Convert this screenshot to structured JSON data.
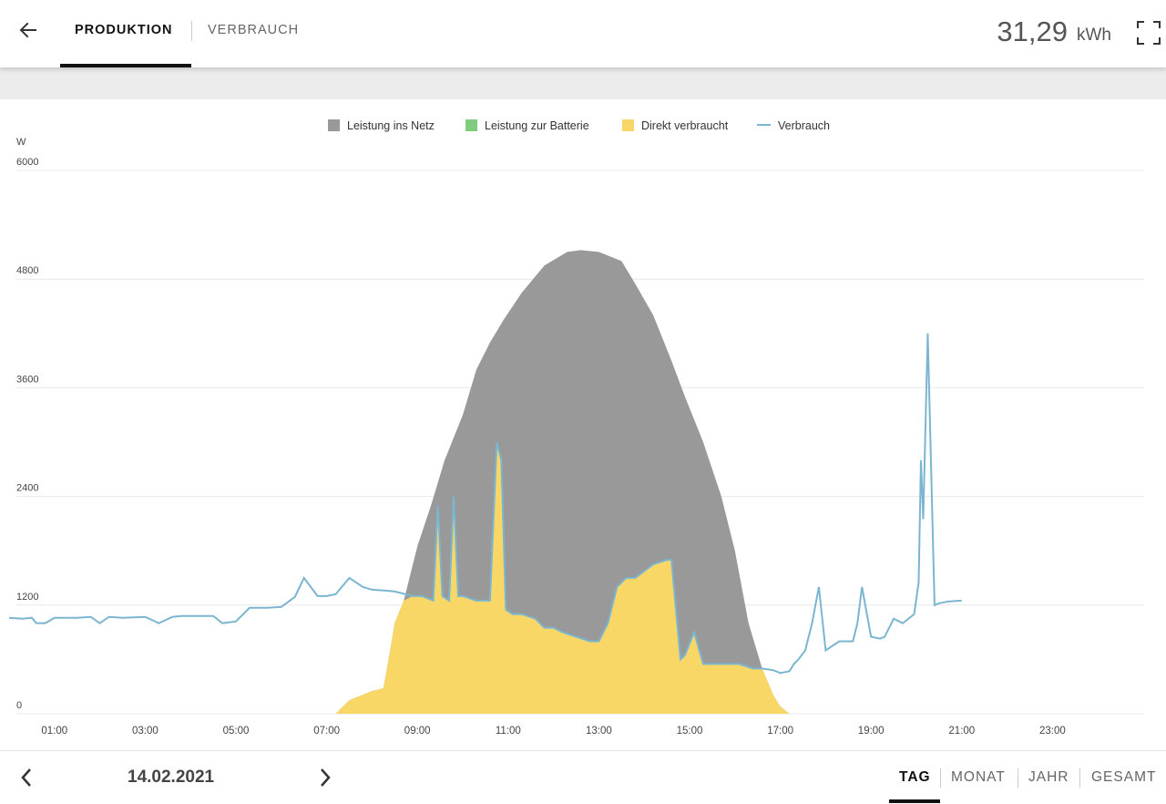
{
  "header": {
    "tabs": [
      {
        "label": "PRODUKTION",
        "active": true
      },
      {
        "label": "VERBRAUCH",
        "active": false
      }
    ],
    "total_value": "31,29",
    "total_unit": "kWh",
    "icons": {
      "back": "arrow-left-icon",
      "fullscreen": "fullscreen-icon"
    }
  },
  "chart_data": {
    "type": "area",
    "ylabel": "W",
    "ylim": [
      0,
      6000
    ],
    "yticks": [
      "0",
      "1200",
      "2400",
      "3600",
      "4800",
      "6000"
    ],
    "xticks": [
      "01:00",
      "03:00",
      "05:00",
      "07:00",
      "09:00",
      "11:00",
      "13:00",
      "15:00",
      "17:00",
      "19:00",
      "21:00",
      "23:00"
    ],
    "grid": true,
    "legend_position": "top",
    "legend": [
      {
        "name": "Leistung ins Netz",
        "color": "#999999",
        "kind": "area"
      },
      {
        "name": "Leistung zur Batterie",
        "color": "#7fcc7f",
        "kind": "area"
      },
      {
        "name": "Direkt verbraucht",
        "color": "#f8d766",
        "kind": "area"
      },
      {
        "name": "Verbrauch",
        "color": "#7cb5d0",
        "kind": "line"
      }
    ],
    "series": [
      {
        "name": "Produktion",
        "x": [
          7.2,
          7.5,
          8.0,
          8.25,
          8.4,
          8.5,
          8.7,
          9.0,
          9.3,
          9.6,
          10.0,
          10.3,
          10.6,
          10.9,
          11.3,
          11.8,
          12.3,
          12.6,
          13.0,
          13.5,
          13.8,
          14.2,
          14.6,
          14.9,
          15.3,
          15.7,
          16.0,
          16.3,
          16.6,
          16.85,
          17.0,
          17.2
        ],
        "y": [
          0,
          150,
          250,
          280,
          700,
          1000,
          1250,
          1850,
          2300,
          2800,
          3300,
          3800,
          4100,
          4350,
          4650,
          4950,
          5100,
          5120,
          5100,
          5000,
          4750,
          4400,
          3900,
          3500,
          3000,
          2400,
          1800,
          1000,
          500,
          200,
          80,
          0
        ]
      },
      {
        "name": "Direkt verbraucht",
        "x": [
          7.2,
          7.5,
          8.0,
          8.25,
          8.4,
          8.5,
          8.7,
          8.9,
          9.1,
          9.35,
          9.45,
          9.55,
          9.7,
          9.8,
          9.9,
          10.0,
          10.3,
          10.6,
          10.75,
          10.85,
          10.95,
          11.1,
          11.3,
          11.6,
          11.8,
          12.0,
          12.2,
          12.5,
          12.8,
          13.0,
          13.2,
          13.4,
          13.6,
          13.8,
          14.2,
          14.5,
          14.6,
          14.8,
          14.9,
          15.1,
          15.3,
          15.5,
          15.8,
          16.1,
          16.4,
          16.6,
          16.85,
          17.0,
          17.2
        ],
        "y": [
          0,
          150,
          250,
          280,
          700,
          1000,
          1250,
          1300,
          1300,
          1250,
          2300,
          1300,
          1250,
          2400,
          1300,
          1300,
          1250,
          1250,
          3000,
          2800,
          1150,
          1100,
          1100,
          1050,
          950,
          950,
          900,
          850,
          800,
          800,
          1000,
          1400,
          1500,
          1500,
          1650,
          1700,
          1700,
          600,
          650,
          900,
          550,
          550,
          550,
          550,
          500,
          500,
          200,
          80,
          0
        ]
      },
      {
        "name": "Verbrauch",
        "x": [
          0.0,
          0.3,
          0.5,
          0.6,
          0.8,
          1.0,
          1.5,
          1.8,
          2.0,
          2.2,
          2.5,
          3.0,
          3.3,
          3.6,
          3.8,
          4.0,
          4.5,
          4.7,
          5.0,
          5.3,
          5.7,
          6.0,
          6.3,
          6.5,
          6.8,
          7.0,
          7.2,
          7.5,
          7.8,
          8.0,
          8.3,
          8.5,
          8.9,
          9.1,
          9.35,
          9.45,
          9.55,
          9.7,
          9.8,
          9.9,
          10.0,
          10.3,
          10.6,
          10.75,
          10.85,
          10.95,
          11.1,
          11.3,
          11.6,
          11.8,
          12.0,
          12.2,
          12.5,
          12.8,
          13.0,
          13.2,
          13.4,
          13.6,
          13.8,
          14.2,
          14.5,
          14.6,
          14.8,
          14.9,
          15.1,
          15.3,
          15.5,
          15.8,
          16.1,
          16.4,
          16.6,
          16.85,
          17.0,
          17.2,
          17.3,
          17.4,
          17.55,
          17.7,
          17.85,
          18.0,
          18.3,
          18.5,
          18.6,
          18.7,
          18.8,
          19.0,
          19.2,
          19.3,
          19.5,
          19.7,
          19.95,
          20.05,
          20.1,
          20.15,
          20.25,
          20.4,
          20.5,
          20.6,
          20.7,
          21.0
        ],
        "y": [
          1060,
          1050,
          1060,
          1000,
          1000,
          1060,
          1060,
          1070,
          1000,
          1070,
          1060,
          1070,
          1000,
          1070,
          1080,
          1080,
          1080,
          1000,
          1020,
          1170,
          1170,
          1180,
          1290,
          1500,
          1300,
          1300,
          1320,
          1500,
          1400,
          1370,
          1360,
          1350,
          1300,
          1300,
          1250,
          2300,
          1300,
          1250,
          2400,
          1300,
          1300,
          1250,
          1250,
          3000,
          2800,
          1150,
          1100,
          1100,
          1050,
          950,
          950,
          900,
          850,
          800,
          800,
          1000,
          1400,
          1500,
          1500,
          1650,
          1700,
          1700,
          600,
          650,
          900,
          550,
          550,
          550,
          550,
          500,
          500,
          480,
          450,
          470,
          550,
          600,
          700,
          1000,
          1400,
          700,
          800,
          800,
          800,
          1000,
          1400,
          850,
          830,
          850,
          1050,
          1000,
          1100,
          1450,
          2800,
          2150,
          4200,
          1200,
          1220,
          1230,
          1240,
          1250
        ]
      }
    ]
  },
  "footer": {
    "date": "14.02.2021",
    "periods": [
      {
        "label": "TAG",
        "active": true
      },
      {
        "label": "MONAT",
        "active": false
      },
      {
        "label": "JAHR",
        "active": false
      },
      {
        "label": "GESAMT",
        "active": false
      }
    ],
    "icons": {
      "prev": "chevron-left-icon",
      "next": "chevron-right-icon"
    }
  }
}
